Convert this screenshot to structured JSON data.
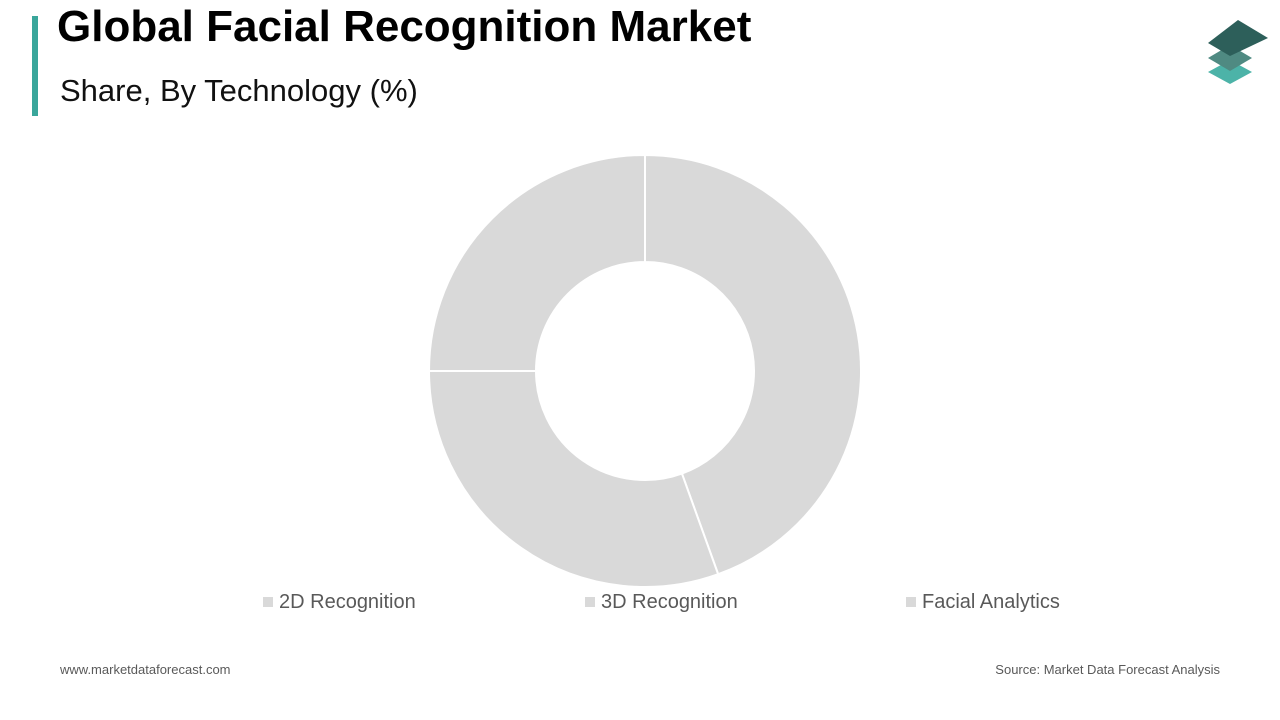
{
  "header": {
    "title": "Global Facial Recognition Market",
    "subtitle": "Share, By Technology (%)"
  },
  "colors": {
    "accent": "#3aa69b",
    "slice": "#d9d9d9",
    "logo_top": "#2d5f5a",
    "logo_mid": "#4f8a82",
    "logo_bottom": "#4cb3a8"
  },
  "icons": {
    "logo": "stacked-layers-logo-icon"
  },
  "chart_data": {
    "type": "pie",
    "variant": "donut",
    "categories": [
      "2D Recognition",
      "3D Recognition",
      "Facial Analytics"
    ],
    "values": [
      44.5,
      30.5,
      25.0
    ],
    "legend": [
      "2D Recognition",
      "3D Recognition",
      "Facial Analytics"
    ],
    "legend_position": "bottom",
    "title": "Global Facial Recognition Market",
    "subtitle": "Share, By Technology (%)"
  },
  "footer": {
    "website": "www.marketdataforecast.com",
    "source": "Source: Market Data Forecast Analysis"
  }
}
